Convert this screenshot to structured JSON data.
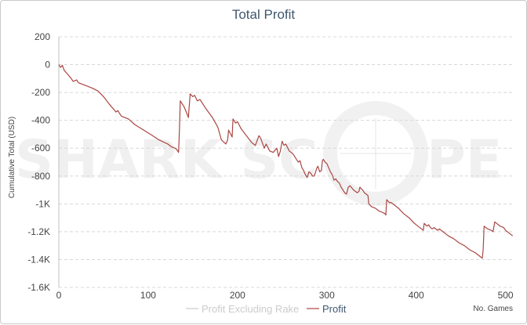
{
  "chart_data": {
    "type": "line",
    "title": "Total Profit",
    "xlabel": "No. Games",
    "ylabel": "Cumulative Total (USD)",
    "xlim": [
      0,
      510
    ],
    "ylim": [
      -1600,
      200
    ],
    "x_ticks": [
      0,
      100,
      200,
      300,
      400,
      500
    ],
    "x_tick_labels": [
      "0",
      "100",
      "200",
      "300",
      "400",
      "500"
    ],
    "y_ticks": [
      200,
      0,
      -200,
      -400,
      -600,
      -800,
      -1000,
      -1200,
      -1400,
      -1600
    ],
    "y_tick_labels": [
      "200",
      "0",
      "-200",
      "-400",
      "-600",
      "-800",
      "-1K",
      "-1.2K",
      "-1.4K",
      "-1.6K"
    ],
    "grid": true,
    "legend_position": "bottom",
    "watermark": "SHARKSCOPE",
    "colors": {
      "profit": "#aa4643",
      "profit_ex_rake": "#cccccc",
      "title": "#3e576f",
      "grid": "#d8d8d8"
    },
    "series": [
      {
        "name": "Profit Excluding Rake",
        "visible": false,
        "points": []
      },
      {
        "name": "Profit",
        "visible": true,
        "points": [
          [
            0,
            0
          ],
          [
            2,
            -20
          ],
          [
            4,
            -5
          ],
          [
            6,
            -40
          ],
          [
            10,
            -70
          ],
          [
            14,
            -100
          ],
          [
            16,
            -120
          ],
          [
            20,
            -110
          ],
          [
            22,
            -130
          ],
          [
            30,
            -150
          ],
          [
            38,
            -170
          ],
          [
            44,
            -190
          ],
          [
            50,
            -230
          ],
          [
            56,
            -280
          ],
          [
            60,
            -310
          ],
          [
            64,
            -340
          ],
          [
            66,
            -330
          ],
          [
            70,
            -370
          ],
          [
            78,
            -390
          ],
          [
            85,
            -430
          ],
          [
            95,
            -470
          ],
          [
            105,
            -510
          ],
          [
            112,
            -540
          ],
          [
            122,
            -570
          ],
          [
            126,
            -590
          ],
          [
            130,
            -600
          ],
          [
            132,
            -610
          ],
          [
            134,
            -630
          ],
          [
            135,
            -470
          ],
          [
            136,
            -260
          ],
          [
            140,
            -300
          ],
          [
            144,
            -360
          ],
          [
            145,
            -380
          ],
          [
            147,
            -210
          ],
          [
            150,
            -230
          ],
          [
            152,
            -220
          ],
          [
            155,
            -260
          ],
          [
            158,
            -250
          ],
          [
            165,
            -320
          ],
          [
            172,
            -380
          ],
          [
            178,
            -450
          ],
          [
            182,
            -540
          ],
          [
            187,
            -570
          ],
          [
            189,
            -540
          ],
          [
            190,
            -470
          ],
          [
            194,
            -520
          ],
          [
            195,
            -390
          ],
          [
            198,
            -420
          ],
          [
            200,
            -410
          ],
          [
            204,
            -460
          ],
          [
            210,
            -510
          ],
          [
            216,
            -560
          ],
          [
            220,
            -580
          ],
          [
            224,
            -510
          ],
          [
            226,
            -530
          ],
          [
            230,
            -600
          ],
          [
            232,
            -570
          ],
          [
            236,
            -620
          ],
          [
            240,
            -630
          ],
          [
            244,
            -600
          ],
          [
            246,
            -660
          ],
          [
            248,
            -620
          ],
          [
            250,
            -550
          ],
          [
            252,
            -580
          ],
          [
            254,
            -570
          ],
          [
            258,
            -620
          ],
          [
            262,
            -640
          ],
          [
            266,
            -680
          ],
          [
            268,
            -700
          ],
          [
            270,
            -690
          ],
          [
            272,
            -740
          ],
          [
            274,
            -760
          ],
          [
            276,
            -790
          ],
          [
            278,
            -810
          ],
          [
            280,
            -770
          ],
          [
            282,
            -780
          ],
          [
            284,
            -800
          ],
          [
            286,
            -800
          ],
          [
            288,
            -760
          ],
          [
            289,
            -740
          ],
          [
            290,
            -730
          ],
          [
            292,
            -770
          ],
          [
            294,
            -760
          ],
          [
            295,
            -690
          ],
          [
            296,
            -680
          ],
          [
            298,
            -700
          ],
          [
            300,
            -710
          ],
          [
            304,
            -770
          ],
          [
            306,
            -790
          ],
          [
            308,
            -830
          ],
          [
            310,
            -820
          ],
          [
            312,
            -840
          ],
          [
            314,
            -850
          ],
          [
            316,
            -880
          ],
          [
            320,
            -920
          ],
          [
            322,
            -930
          ],
          [
            324,
            -880
          ],
          [
            326,
            -870
          ],
          [
            330,
            -900
          ],
          [
            334,
            -920
          ],
          [
            336,
            -910
          ],
          [
            337,
            -880
          ],
          [
            340,
            -900
          ],
          [
            342,
            -920
          ],
          [
            344,
            -930
          ],
          [
            346,
            -940
          ],
          [
            347,
            -1000
          ],
          [
            350,
            -1020
          ],
          [
            354,
            -1030
          ],
          [
            356,
            -1040
          ],
          [
            358,
            -1050
          ],
          [
            362,
            -1060
          ],
          [
            365,
            -1070
          ],
          [
            366,
            -1080
          ],
          [
            367,
            -970
          ],
          [
            370,
            -990
          ],
          [
            372,
            -990
          ],
          [
            376,
            -1010
          ],
          [
            380,
            -1030
          ],
          [
            386,
            -1070
          ],
          [
            392,
            -1100
          ],
          [
            398,
            -1140
          ],
          [
            402,
            -1160
          ],
          [
            406,
            -1180
          ],
          [
            408,
            -1190
          ],
          [
            409,
            -1140
          ],
          [
            412,
            -1160
          ],
          [
            414,
            -1150
          ],
          [
            416,
            -1170
          ],
          [
            418,
            -1180
          ],
          [
            420,
            -1170
          ],
          [
            424,
            -1190
          ],
          [
            426,
            -1180
          ],
          [
            430,
            -1200
          ],
          [
            436,
            -1230
          ],
          [
            442,
            -1250
          ],
          [
            448,
            -1280
          ],
          [
            454,
            -1300
          ],
          [
            460,
            -1330
          ],
          [
            466,
            -1350
          ],
          [
            470,
            -1370
          ],
          [
            474,
            -1390
          ],
          [
            475,
            -1330
          ],
          [
            476,
            -1160
          ],
          [
            478,
            -1170
          ],
          [
            480,
            -1180
          ],
          [
            484,
            -1190
          ],
          [
            486,
            -1200
          ],
          [
            488,
            -1130
          ],
          [
            490,
            -1140
          ],
          [
            492,
            -1150
          ],
          [
            494,
            -1160
          ],
          [
            498,
            -1170
          ],
          [
            500,
            -1190
          ],
          [
            504,
            -1210
          ],
          [
            508,
            -1230
          ]
        ]
      }
    ]
  }
}
